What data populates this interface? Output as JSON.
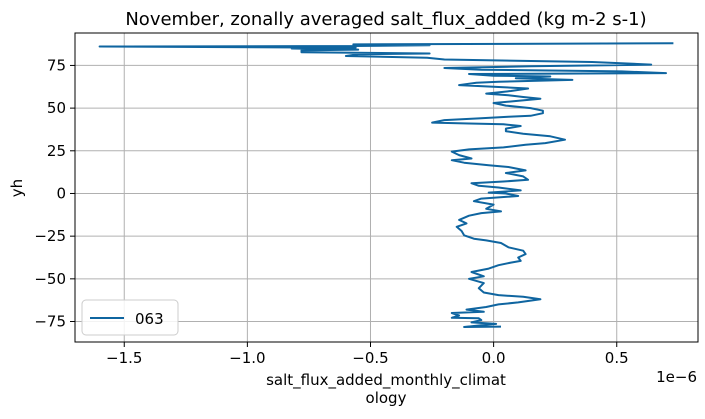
{
  "chart_data": {
    "type": "line",
    "title": "November, zonally averaged salt_flux_added (kg m-2 s-1)",
    "xlabel_line1": "salt_flux_added_monthly_climat",
    "xlabel_line2": "ology",
    "ylabel": "yh",
    "x_offset_label": "1e−6",
    "xlim": [
      -1.7e-06,
      8.3e-07
    ],
    "ylim": [
      -87,
      94
    ],
    "xticks": [
      -1.5e-06,
      -1e-06,
      -5e-07,
      0.0,
      5e-07
    ],
    "xtick_labels": [
      "−1.5",
      "−1.0",
      "−0.5",
      "0.0",
      "0.5"
    ],
    "yticks": [
      -75,
      -50,
      -25,
      0,
      25,
      50,
      75
    ],
    "ytick_labels": [
      "−75",
      "−50",
      "−25",
      "0",
      "25",
      "50",
      "75"
    ],
    "grid": true,
    "legend_position": "lower-left",
    "colors": {
      "line": "#0f65a0",
      "grid": "#b0b0b0"
    },
    "series": [
      {
        "name": "063",
        "points": [
          [
            3e-08,
            -78.0
          ],
          [
            -1.2e-07,
            -78.2
          ],
          [
            -5e-08,
            -77.2
          ],
          [
            1e-08,
            -76.4
          ],
          [
            -9e-08,
            -75.5
          ],
          [
            -5e-08,
            -74.2
          ],
          [
            -6e-08,
            -73.1
          ],
          [
            -1.7e-07,
            -72.8
          ],
          [
            -1.4e-07,
            -71.5
          ],
          [
            -1.7e-07,
            -70.0
          ],
          [
            -4e-08,
            -69.3
          ],
          [
            -1.1e-07,
            -68.0
          ],
          [
            -3e-08,
            -66.5
          ],
          [
            2e-08,
            -65.0
          ],
          [
            1e-07,
            -63.8
          ],
          [
            1.9e-07,
            -62.0
          ],
          [
            1.2e-07,
            -60.5
          ],
          [
            2e-08,
            -59.5
          ],
          [
            -4e-08,
            -58.0
          ],
          [
            -6e-08,
            -55.5
          ],
          [
            -4e-08,
            -52.5
          ],
          [
            -1e-07,
            -50.0
          ],
          [
            -4e-08,
            -48.5
          ],
          [
            -9e-08,
            -46.0
          ],
          [
            -2e-08,
            -44.0
          ],
          [
            2e-08,
            -42.0
          ],
          [
            7e-08,
            -40.5
          ],
          [
            1.1e-07,
            -39.5
          ],
          [
            1e-07,
            -37.5
          ],
          [
            1.3e-07,
            -35.5
          ],
          [
            1.2e-07,
            -33.5
          ],
          [
            6e-08,
            -31.5
          ],
          [
            3e-08,
            -29.0
          ],
          [
            -3e-08,
            -27.5
          ],
          [
            -8e-08,
            -26.5
          ],
          [
            -1.2e-07,
            -24.5
          ],
          [
            -1.3e-07,
            -22.0
          ],
          [
            -1.5e-07,
            -19.5
          ],
          [
            -1.1e-07,
            -17.5
          ],
          [
            -1.4e-07,
            -15.5
          ],
          [
            -1e-07,
            -13.0
          ],
          [
            -5e-08,
            -11.5
          ],
          [
            3e-08,
            -10.5
          ],
          [
            -3e-08,
            -9.0
          ],
          [
            0.0,
            -6.5
          ],
          [
            -8e-08,
            -4.5
          ],
          [
            -5e-08,
            -3.0
          ],
          [
            1e-07,
            -1.5
          ],
          [
            5e-08,
            0.0
          ],
          [
            -2e-08,
            0.5
          ],
          [
            1.1e-07,
            1.8
          ],
          [
            2e-08,
            3.5
          ],
          [
            -6e-08,
            4.5
          ],
          [
            -9e-08,
            6.0
          ],
          [
            4e-08,
            7.0
          ],
          [
            1.4e-07,
            8.0
          ],
          [
            1.2e-07,
            10.0
          ],
          [
            5e-08,
            12.0
          ],
          [
            1.3e-07,
            13.5
          ],
          [
            6e-08,
            15.5
          ],
          [
            -2e-08,
            16.5
          ],
          [
            -1.2e-07,
            18.0
          ],
          [
            -1.7e-07,
            19.5
          ],
          [
            -9e-08,
            20.5
          ],
          [
            -1.4e-07,
            22.5
          ],
          [
            -1.7e-07,
            24.5
          ],
          [
            -1e-07,
            25.8
          ],
          [
            4e-08,
            27.0
          ],
          [
            1.3e-07,
            28.5
          ],
          [
            2.1e-07,
            29.5
          ],
          [
            2.9e-07,
            31.5
          ],
          [
            2.3e-07,
            33.5
          ],
          [
            1.2e-07,
            35.0
          ],
          [
            5e-08,
            36.5
          ],
          [
            5e-08,
            38.0
          ],
          [
            1.1e-07,
            39.5
          ],
          [
            4e-08,
            40.5
          ],
          [
            -1e-07,
            41.0
          ],
          [
            -2.5e-07,
            41.5
          ],
          [
            -2e-07,
            43.0
          ],
          [
            -6e-08,
            44.0
          ],
          [
            6e-08,
            45.0
          ],
          [
            1.5e-07,
            45.5
          ],
          [
            2e-07,
            47.0
          ],
          [
            2e-07,
            48.5
          ],
          [
            1.5e-07,
            50.0
          ],
          [
            5e-08,
            51.5
          ],
          [
            0.0,
            53.0
          ],
          [
            8e-08,
            54.0
          ],
          [
            1.9e-07,
            55.5
          ],
          [
            1.2e-07,
            56.5
          ],
          [
            6e-08,
            57.5
          ],
          [
            -3e-08,
            58.5
          ],
          [
            7e-08,
            60.0
          ],
          [
            1.4e-07,
            61.5
          ],
          [
            0.0,
            62.5
          ],
          [
            -1.4e-07,
            63.5
          ],
          [
            -7e-08,
            64.8
          ],
          [
            2e-08,
            65.5
          ],
          [
            3.2e-07,
            66.5
          ],
          [
            9e-08,
            67.5
          ],
          [
            2.3e-07,
            68.5
          ],
          [
            0.0,
            69.0
          ],
          [
            -1e-07,
            70.0
          ],
          [
            7e-07,
            70.5
          ],
          [
            5.2e-07,
            71.5
          ],
          [
            -5e-08,
            72.5
          ],
          [
            -2e-07,
            73.5
          ],
          [
            1.5e-07,
            74.5
          ],
          [
            6.4e-07,
            75.5
          ],
          [
            4e-07,
            77.0
          ],
          [
            -2e-07,
            78.5
          ],
          [
            -2.7e-07,
            79.5
          ],
          [
            -6e-07,
            80.5
          ],
          [
            -5.5e-07,
            81.5
          ],
          [
            -2.6e-07,
            82.0
          ],
          [
            -7.8e-07,
            82.7
          ],
          [
            -7.8e-07,
            83.8
          ],
          [
            -5.5e-07,
            84.3
          ],
          [
            -8.2e-07,
            84.9
          ],
          [
            -5.6e-07,
            85.4
          ],
          [
            -1.6e-06,
            86.1
          ],
          [
            -5.7e-07,
            86.4
          ],
          [
            -2.6e-07,
            86.8
          ],
          [
            -5.7e-07,
            87.3
          ],
          [
            7.3e-07,
            88.0
          ]
        ]
      }
    ]
  }
}
